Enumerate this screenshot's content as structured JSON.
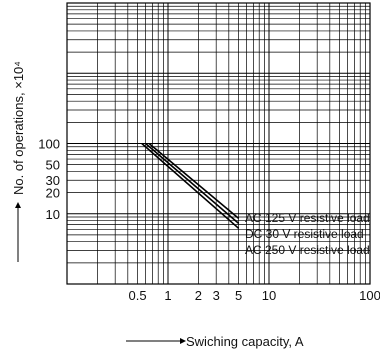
{
  "chart_data": {
    "type": "line",
    "title": "",
    "xlabel": "Swiching capacity, A",
    "ylabel": "No. of operations, ×10⁴",
    "x_scale": "log",
    "y_scale": "log",
    "xlim": [
      0.1,
      100
    ],
    "ylim": [
      1,
      10000
    ],
    "grid": true,
    "x_ticks": [
      {
        "value": 0.5,
        "label": "0.5"
      },
      {
        "value": 1,
        "label": "1"
      },
      {
        "value": 2,
        "label": "2"
      },
      {
        "value": 3,
        "label": "3"
      },
      {
        "value": 5,
        "label": "5"
      },
      {
        "value": 10,
        "label": "10"
      },
      {
        "value": 100,
        "label": "100"
      }
    ],
    "y_ticks": [
      {
        "value": 10,
        "label": "10"
      },
      {
        "value": 20,
        "label": "20"
      },
      {
        "value": 30,
        "label": "30"
      },
      {
        "value": 50,
        "label": "50"
      },
      {
        "value": 100,
        "label": "100"
      }
    ],
    "series": [
      {
        "name": "AC 125 V resistive load",
        "x": [
          0.65,
          5
        ],
        "y": [
          100,
          8.6
        ]
      },
      {
        "name": "DC 30 V resistive load",
        "x": [
          0.6,
          5
        ],
        "y": [
          100,
          7.3
        ]
      },
      {
        "name": "AC 250 V resistive load",
        "x": [
          0.55,
          5
        ],
        "y": [
          100,
          6.2
        ]
      }
    ]
  }
}
